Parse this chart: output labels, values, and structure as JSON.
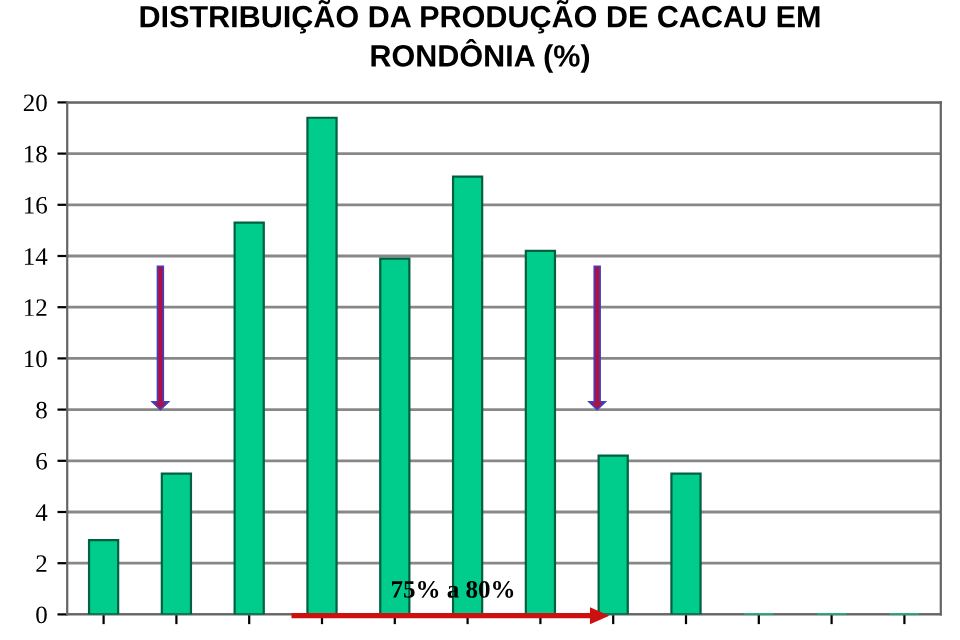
{
  "chart_data": {
    "type": "bar",
    "title": "DISTRIBUIÇÃO DA PRODUÇÃO DE CACAU EM\nRONDÔNIA (%)",
    "categories": [
      null,
      null,
      null,
      null,
      null,
      null,
      null,
      null,
      null,
      null,
      null,
      null
    ],
    "values": [
      2.9,
      5.5,
      15.3,
      19.4,
      13.9,
      17.1,
      14.2,
      6.2,
      5.5,
      0,
      0,
      0
    ],
    "color": "#00cc8c",
    "ylim": [
      0,
      20
    ],
    "yticks": [
      0,
      2,
      4,
      6,
      8,
      10,
      12,
      14,
      16,
      18,
      20
    ],
    "grid": "y",
    "annotations": [
      "75% a 80%"
    ]
  }
}
